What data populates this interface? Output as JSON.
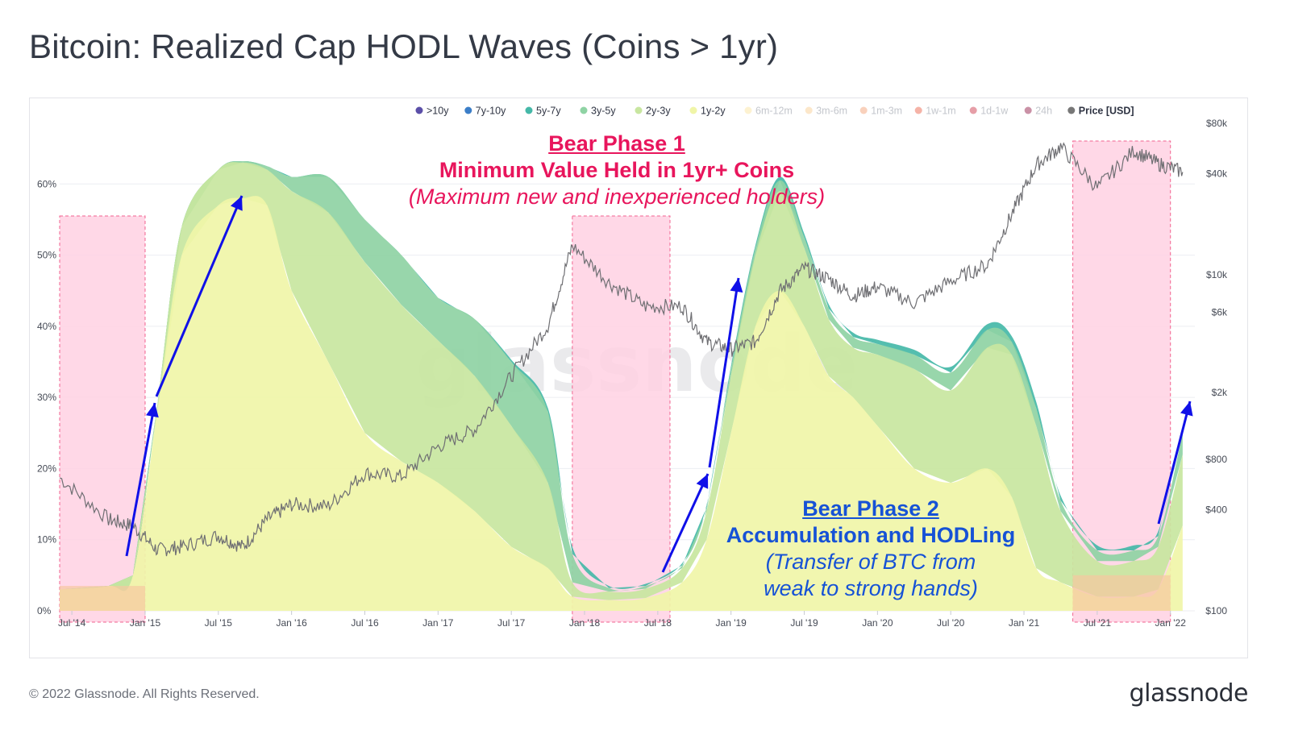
{
  "title": "Bitcoin: Realized Cap HODL Waves (Coins > 1yr)",
  "footer": {
    "copyright": "© 2022 Glassnode. All Rights Reserved.",
    "logo": "glassnode"
  },
  "watermark": "glassnode",
  "annotations": {
    "bear1": {
      "heading": "Bear Phase 1",
      "subtitle": "Minimum Value Held in 1yr+ Coins",
      "note": "(Maximum new and inexperienced holders)",
      "color": "#e8155c"
    },
    "bear2": {
      "heading": "Bear Phase 2",
      "subtitle": "Accumulation and HODLing",
      "note_line1": "(Transfer of BTC from",
      "note_line2": "weak to strong hands)",
      "color": "#1652d6"
    }
  },
  "chart_data": {
    "type": "area",
    "legend": [
      {
        "name": ">10y",
        "color": "#5b4fa8",
        "active": true
      },
      {
        "name": "7y-10y",
        "color": "#3b7ec8",
        "active": true
      },
      {
        "name": "5y-7y",
        "color": "#45b8a8",
        "active": true
      },
      {
        "name": "3y-5y",
        "color": "#8fd3a4",
        "active": true
      },
      {
        "name": "2y-3y",
        "color": "#c8e6a0",
        "active": true
      },
      {
        "name": "1y-2y",
        "color": "#f0f5a8",
        "active": true
      },
      {
        "name": "6m-12m",
        "color": "#fbe39a",
        "active": false
      },
      {
        "name": "3m-6m",
        "color": "#f8c98a",
        "active": false
      },
      {
        "name": "1m-3m",
        "color": "#f29a6a",
        "active": false
      },
      {
        "name": "1w-1m",
        "color": "#e8573c",
        "active": false
      },
      {
        "name": "1d-1w",
        "color": "#c8283c",
        "active": false
      },
      {
        "name": "24h",
        "color": "#8a0a3a",
        "active": false
      },
      {
        "name": "Price [USD]",
        "color": "#777777",
        "active": true
      }
    ],
    "x_ticks": [
      "Jul '14",
      "Jan '15",
      "Jul '15",
      "Jan '16",
      "Jul '16",
      "Jan '17",
      "Jul '17",
      "Jan '18",
      "Jul '18",
      "Jan '19",
      "Jul '19",
      "Jan '20",
      "Jul '20",
      "Jan '21",
      "Jul '21",
      "Jan '22"
    ],
    "y_left_ticks": [
      "0%",
      "10%",
      "20%",
      "30%",
      "40%",
      "50%",
      "60%"
    ],
    "y_left_range": [
      0,
      70
    ],
    "y_right_ticks": [
      "$100",
      "$400",
      "$800",
      "$2k",
      "$6k",
      "$10k",
      "$40k",
      "$80k"
    ],
    "y_right_range": [
      100,
      80000
    ],
    "y_right_scale": "log",
    "x": [
      "2014-06",
      "2014-10",
      "2014-12",
      "2015-02",
      "2015-04",
      "2015-07",
      "2015-09",
      "2015-11",
      "2016-01",
      "2016-04",
      "2016-07",
      "2016-10",
      "2017-01",
      "2017-04",
      "2017-07",
      "2017-10",
      "2017-12",
      "2018-03",
      "2018-06",
      "2018-09",
      "2018-11",
      "2019-01",
      "2019-03",
      "2019-05",
      "2019-07",
      "2019-09",
      "2019-11",
      "2020-01",
      "2020-04",
      "2020-07",
      "2020-10",
      "2020-12",
      "2021-02",
      "2021-04",
      "2021-07",
      "2021-10",
      "2021-12",
      "2022-02"
    ],
    "series": [
      {
        "name": "1y-2y",
        "values": [
          3,
          3.5,
          5,
          28,
          50,
          57,
          58,
          57,
          45,
          35,
          25,
          21,
          18,
          14,
          9,
          6,
          2,
          1.5,
          1.8,
          4,
          10,
          25,
          40,
          45,
          40,
          33,
          30,
          26,
          20,
          18,
          20,
          16,
          6,
          4,
          2,
          2,
          3,
          12
        ]
      },
      {
        "name": "2y-3y",
        "values": [
          0,
          0,
          0,
          1,
          4,
          5,
          5,
          5,
          14,
          21,
          24,
          22,
          20,
          19,
          17,
          12,
          2,
          1.2,
          1.3,
          2,
          4,
          8,
          10,
          14,
          11,
          8,
          7,
          10,
          14,
          13,
          17,
          20,
          20,
          10,
          5,
          5,
          6,
          10
        ]
      },
      {
        "name": "3y-5y",
        "values": [
          0,
          0,
          0,
          0,
          0,
          0,
          0.2,
          0.5,
          2,
          5,
          6,
          7,
          6,
          8,
          9,
          10,
          4,
          0.5,
          0.4,
          0.4,
          0.6,
          1,
          1,
          1.5,
          1.5,
          1.5,
          1.5,
          1.5,
          2,
          2.5,
          2.5,
          1.8,
          2.5,
          1.5,
          1.5,
          1.5,
          1.5,
          3
        ]
      },
      {
        "name": "5y-7y",
        "values": [
          0,
          0,
          0,
          0,
          0,
          0,
          0,
          0,
          0,
          0,
          0,
          0,
          0,
          0,
          0.3,
          0.5,
          1,
          0.3,
          0.3,
          0.3,
          0.3,
          0.4,
          0.4,
          0.5,
          0.5,
          0.6,
          0.6,
          0.6,
          0.7,
          0.8,
          0.8,
          0.8,
          0.9,
          0.7,
          0.7,
          0.7,
          0.7,
          0.8
        ]
      },
      {
        "name": "Price [USD]",
        "values": [
          620,
          350,
          320,
          230,
          240,
          280,
          240,
          350,
          430,
          420,
          660,
          630,
          950,
          1200,
          2500,
          5000,
          15000,
          9000,
          6500,
          6500,
          4000,
          3600,
          4000,
          8000,
          11000,
          9500,
          7500,
          8500,
          6800,
          9200,
          11500,
          23000,
          45000,
          58000,
          33000,
          55000,
          46000,
          41000
        ]
      }
    ],
    "highlights": [
      {
        "from": "2014-06",
        "to": "2014-12",
        "phase": "Bear Phase 1"
      },
      {
        "from": "2017-12",
        "to": "2018-07",
        "phase": "Bear Phase 1"
      },
      {
        "from": "2021-05",
        "to": "2021-12",
        "phase": "Bear Phase 1"
      }
    ]
  }
}
